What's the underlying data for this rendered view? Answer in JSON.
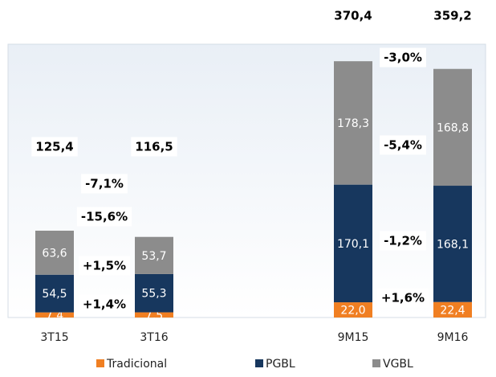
{
  "chart_data": {
    "type": "stacked_bar",
    "categories": [
      "3T15",
      "3T16",
      null,
      "9M15",
      "9M16"
    ],
    "ylim": [
      0,
      395
    ],
    "series": [
      {
        "name": "Tradicional",
        "color": "#f07f22",
        "values": [
          7.4,
          7.5,
          null,
          22.0,
          22.4
        ],
        "value_labels": [
          "7,4",
          "7,5",
          null,
          "22,0",
          "22,4"
        ]
      },
      {
        "name": "PGBL",
        "color": "#17375e",
        "values": [
          54.5,
          55.3,
          null,
          170.1,
          168.1
        ],
        "value_labels": [
          "54,5",
          "55,3",
          null,
          "170,1",
          "168,1"
        ]
      },
      {
        "name": "VGBL",
        "color": "#8c8c8c",
        "values": [
          63.6,
          53.7,
          null,
          178.3,
          168.8
        ],
        "value_labels": [
          "63,6",
          "53,7",
          null,
          "178,3",
          "168,8"
        ]
      }
    ],
    "totals": {
      "values": [
        125.4,
        116.5,
        null,
        370.4,
        359.2
      ],
      "value_labels": [
        "125,4",
        "116,5",
        null,
        "370,4",
        "359,2"
      ]
    },
    "changes": [
      [
        {
          "value": -7.1,
          "label": "-7,1%"
        },
        {
          "value": -15.6,
          "label": "-15,6%"
        },
        {
          "value": 1.5,
          "label": "+1,5%"
        },
        {
          "value": 1.4,
          "label": "+1,4%"
        }
      ],
      [
        {
          "value": -3.0,
          "label": "-3,0%"
        },
        {
          "value": -5.4,
          "label": "-5,4%"
        },
        {
          "value": -1.2,
          "label": "-1,2%"
        },
        {
          "value": 1.6,
          "label": "+1,6%"
        }
      ]
    ]
  }
}
